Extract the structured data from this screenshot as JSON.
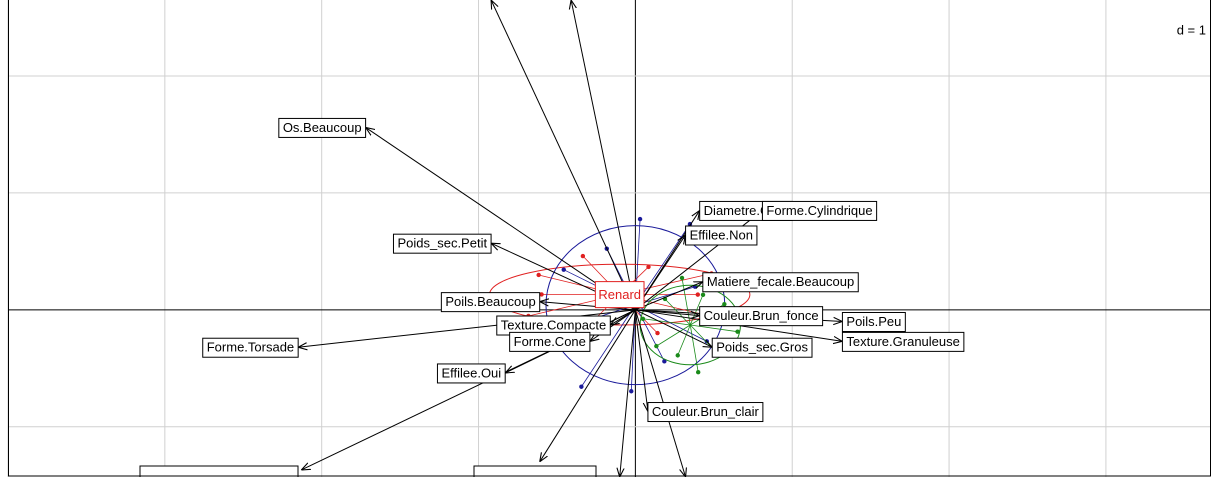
{
  "chart_data": {
    "type": "arrows",
    "grid_label": "d = 1",
    "xlim": [
      -4,
      3.67
    ],
    "ylim": [
      -1.43,
      2.65
    ],
    "xticks": [
      -4,
      -3,
      -2,
      -1,
      0,
      1,
      2,
      3
    ],
    "yticks": [
      -1,
      0,
      1,
      2
    ],
    "grid": true,
    "classes": [
      {
        "name": "Renard",
        "color": "#e02020",
        "x": -0.1,
        "y": 0.13,
        "rx": 0.83,
        "ry": 0.26
      },
      {
        "color": "#1a1a9a",
        "x": 0.0,
        "y": 0.04,
        "rx": 0.57,
        "ry": 0.68
      },
      {
        "color": "#1a8a1a",
        "x": 0.35,
        "y": -0.13,
        "rx": 0.32,
        "ry": 0.34
      }
    ],
    "arrows": [
      {
        "label": "Os.Beaucoup",
        "x": -1.72,
        "y": 1.56
      },
      {
        "label": "Diametre.Gros",
        "x": 0.41,
        "y": 0.85
      },
      {
        "label": "Effilee.Non",
        "x": 0.32,
        "y": 0.64
      },
      {
        "label": "Forme.Cylindrique",
        "x": 0.81,
        "y": 0.85
      },
      {
        "label": "Poids_sec.Petit",
        "x": -0.92,
        "y": 0.57
      },
      {
        "label": "Matiere_fecale.Beaucoup",
        "x": 0.43,
        "y": 0.24
      },
      {
        "label": "Poils.Beaucoup",
        "x": -0.61,
        "y": 0.07
      },
      {
        "label": "Texture.Compacte",
        "x": -0.16,
        "y": -0.13
      },
      {
        "label": "Couleur.Brun_fonce",
        "x": 0.41,
        "y": -0.05
      },
      {
        "label": "Poils.Peu",
        "x": 1.32,
        "y": -0.1
      },
      {
        "label": "Forme.Torsade",
        "x": -2.15,
        "y": -0.32
      },
      {
        "label": "Forme.Cone",
        "x": -0.29,
        "y": -0.27
      },
      {
        "label": "Poids_sec.Gros",
        "x": 0.49,
        "y": -0.32
      },
      {
        "label": "Texture.Granuleuse",
        "x": 1.32,
        "y": -0.27
      },
      {
        "label": "Effilee.Oui",
        "x": -0.83,
        "y": -0.54
      },
      {
        "label": "Couleur.Brun_clair",
        "x": 0.08,
        "y": -0.87
      },
      {
        "x": -0.92,
        "y": 2.65
      },
      {
        "x": -0.41,
        "y": 2.65
      },
      {
        "x": -2.13,
        "y": -1.37
      },
      {
        "x": -0.61,
        "y": -1.3
      },
      {
        "x": -0.1,
        "y": -1.43
      },
      {
        "x": 0.32,
        "y": -1.43
      }
    ]
  }
}
